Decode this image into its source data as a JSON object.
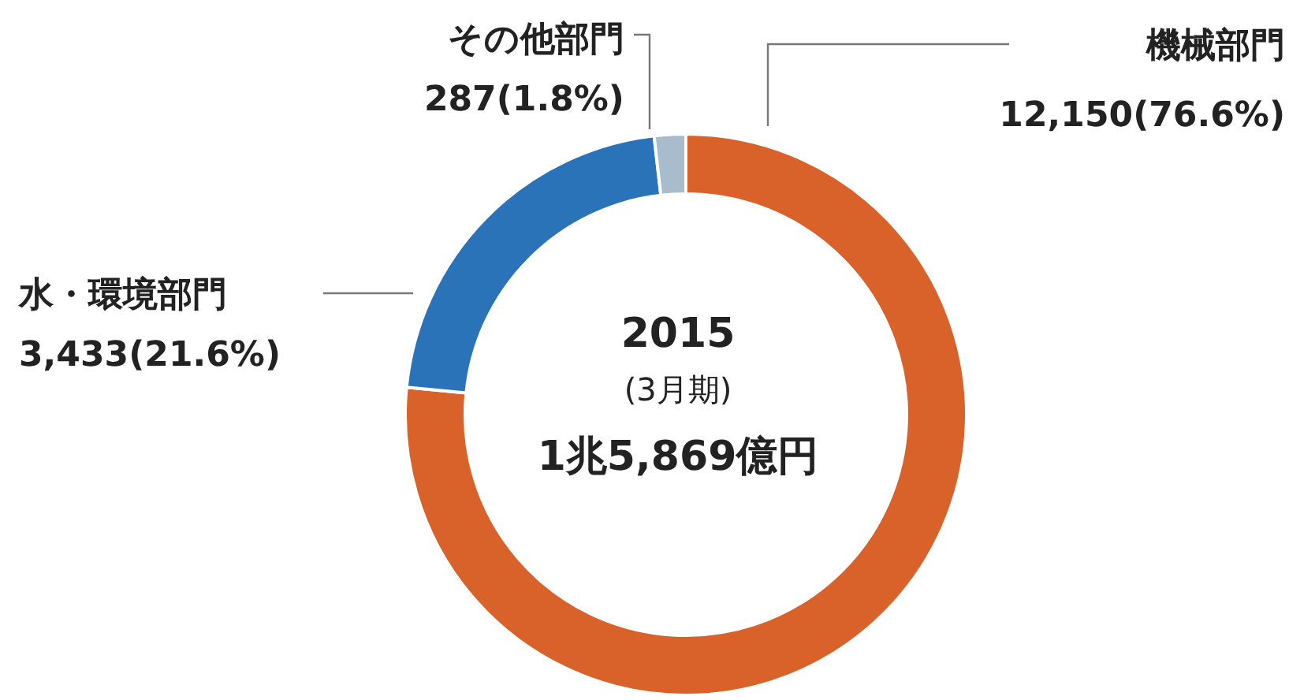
{
  "chart_data": {
    "type": "donut",
    "categories": [
      "機械部門",
      "水・環境部門",
      "その他部門"
    ],
    "values": [
      12150,
      3433,
      287
    ],
    "colors": [
      "#d9622a",
      "#2a73b8",
      "#a9bccb"
    ],
    "value_labels": [
      "12,150(76.6%)",
      "3,433(21.6%)",
      "287(1.8%)"
    ],
    "annotations": [
      "2015",
      "(3月期)",
      "1兆5,869億円"
    ],
    "legend": false
  }
}
